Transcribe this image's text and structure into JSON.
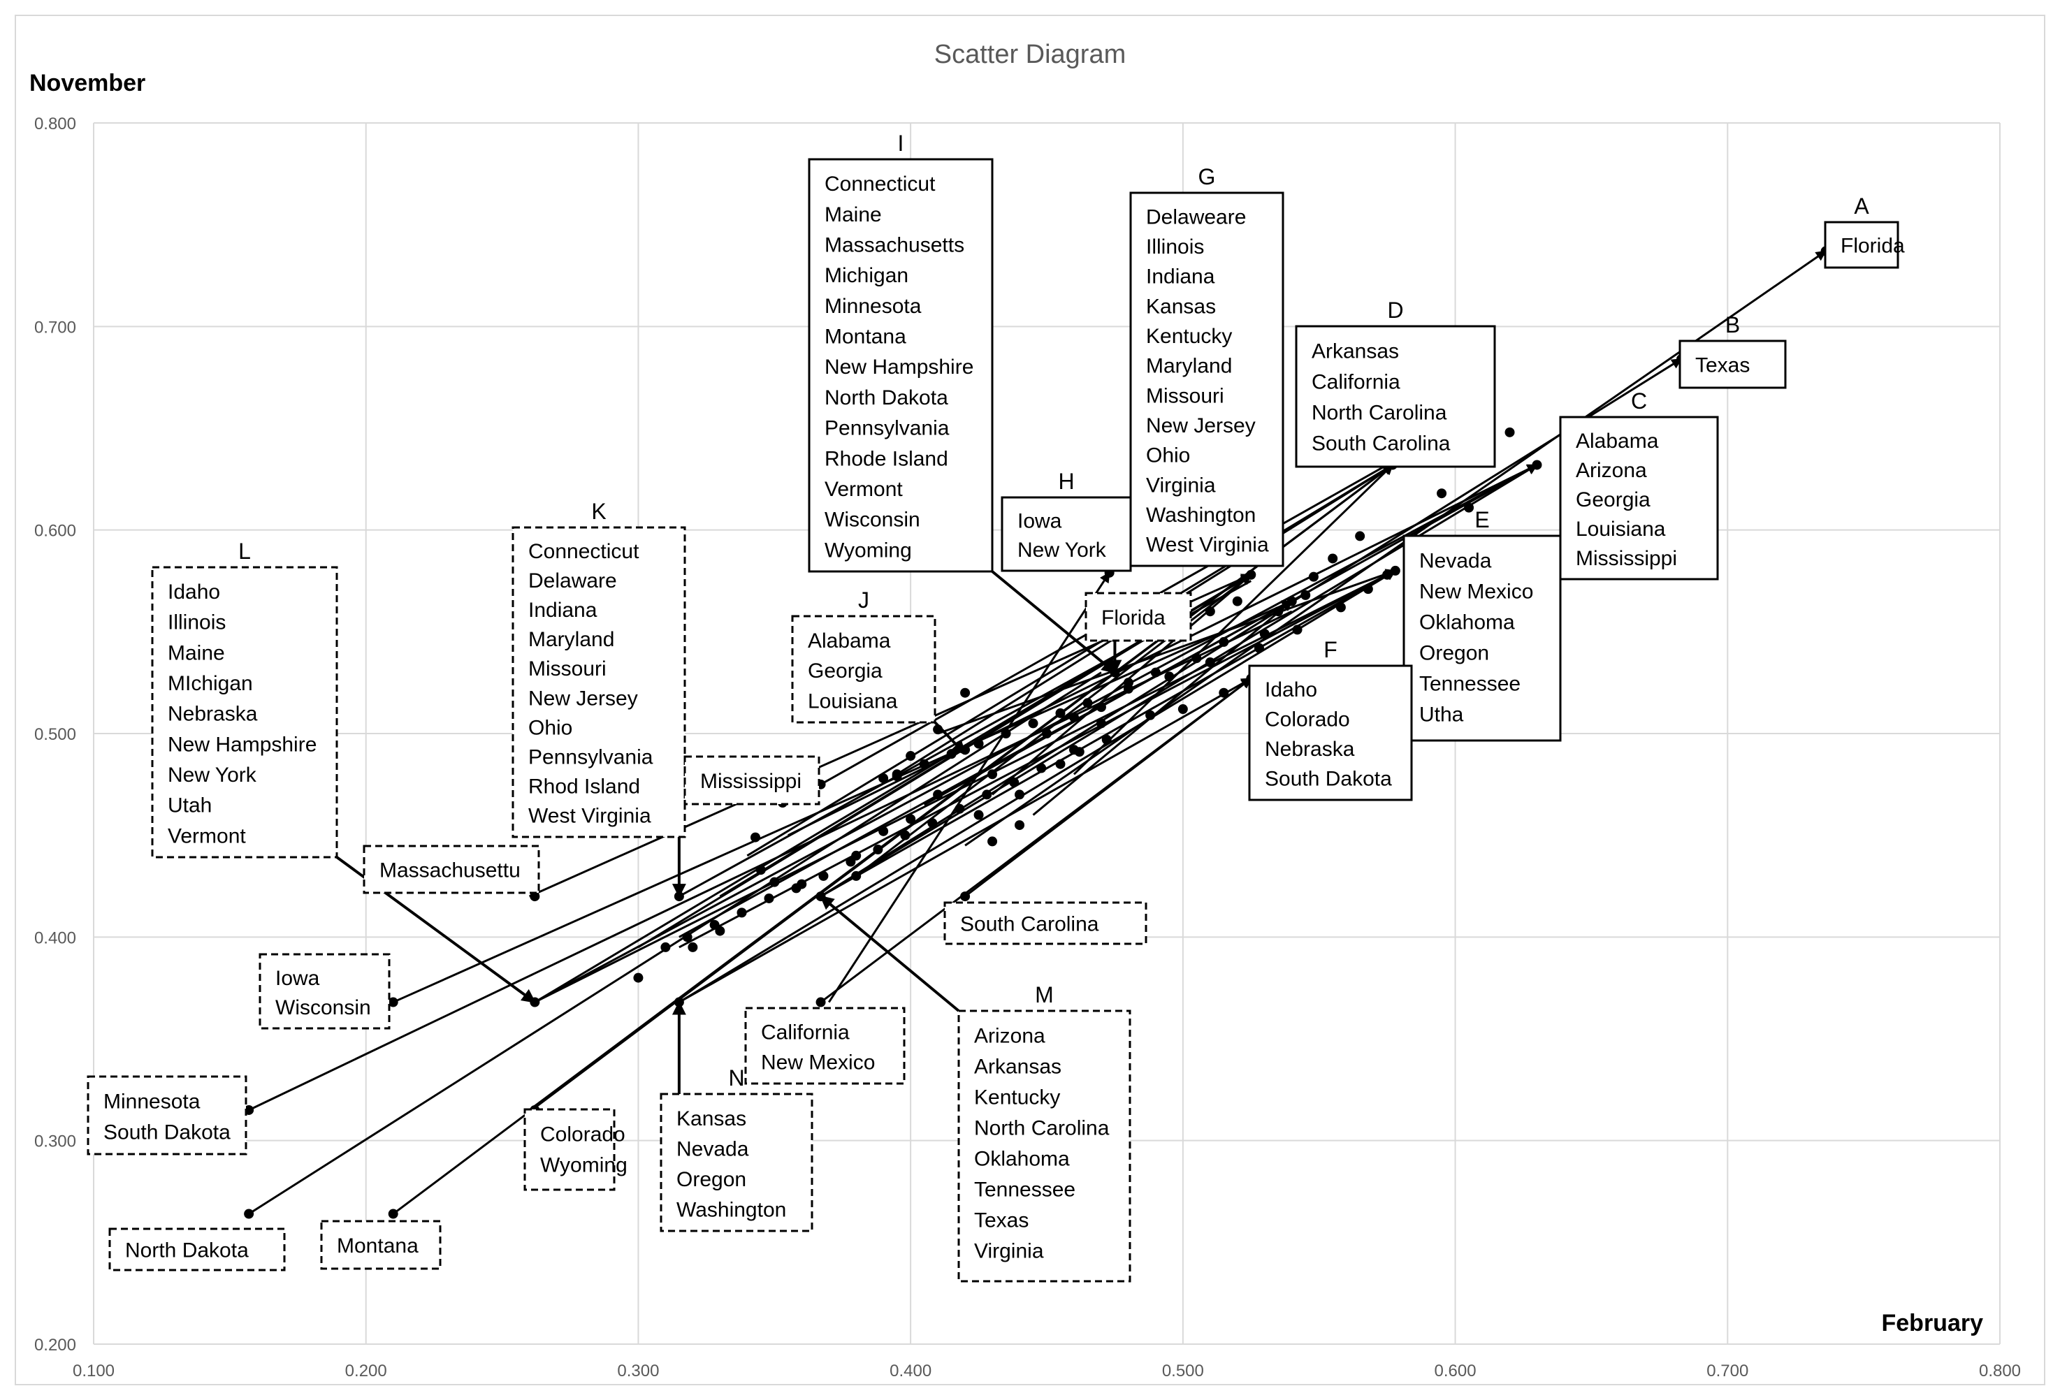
{
  "chart_data": {
    "type": "scatter",
    "title": "Scatter Diagram",
    "xlabel": "February",
    "ylabel": "November",
    "xlim": [
      0.1,
      0.8
    ],
    "ylim": [
      0.2,
      0.8
    ],
    "x_ticks": [
      "0.100",
      "0.200",
      "0.300",
      "0.400",
      "0.500",
      "0.600",
      "0.700",
      "0.800"
    ],
    "y_ticks": [
      "0.200",
      "0.300",
      "0.400",
      "0.500",
      "0.600",
      "0.700",
      "0.800"
    ],
    "grid": true,
    "colors": {
      "stroke": "#000000",
      "grid": "#d9d9d9",
      "title": "#595959",
      "axis_text": "#595959"
    },
    "segments": [
      {
        "from": [
          0.26,
          0.42
        ],
        "to": [
          0.525,
          0.578
        ]
      },
      {
        "from": [
          0.315,
          0.42
        ],
        "to": [
          0.525,
          0.575
        ]
      },
      {
        "from": [
          0.367,
          0.475
        ],
        "to": [
          0.575,
          0.632
        ]
      },
      {
        "from": [
          0.37,
          0.368
        ],
        "to": [
          0.473,
          0.579
        ]
      },
      {
        "from": [
          0.21,
          0.368
        ],
        "to": [
          0.54,
          0.565
        ]
      },
      {
        "from": [
          0.157,
          0.315
        ],
        "to": [
          0.54,
          0.56
        ]
      },
      {
        "from": [
          0.157,
          0.264
        ],
        "to": [
          0.47,
          0.53
        ]
      },
      {
        "from": [
          0.21,
          0.264
        ],
        "to": [
          0.577,
          0.632
        ]
      },
      {
        "from": [
          0.26,
          0.315
        ],
        "to": [
          0.577,
          0.632
        ]
      },
      {
        "from": [
          0.315,
          0.368
        ],
        "to": [
          0.578,
          0.58
        ]
      },
      {
        "from": [
          0.315,
          0.368
        ],
        "to": [
          0.525,
          0.527
        ]
      },
      {
        "from": [
          0.367,
          0.368
        ],
        "to": [
          0.525,
          0.527
        ]
      },
      {
        "from": [
          0.42,
          0.42
        ],
        "to": [
          0.525,
          0.527
        ]
      },
      {
        "from": [
          0.262,
          0.368
        ],
        "to": [
          0.525,
          0.578
        ]
      },
      {
        "from": [
          0.262,
          0.368
        ],
        "to": [
          0.63,
          0.632
        ]
      },
      {
        "from": [
          0.262,
          0.368
        ],
        "to": [
          0.578,
          0.58
        ]
      },
      {
        "from": [
          0.367,
          0.42
        ],
        "to": [
          0.63,
          0.632
        ]
      },
      {
        "from": [
          0.367,
          0.42
        ],
        "to": [
          0.578,
          0.58
        ]
      },
      {
        "from": [
          0.367,
          0.42
        ],
        "to": [
          0.683,
          0.684
        ]
      },
      {
        "from": [
          0.42,
          0.445
        ],
        "to": [
          0.736,
          0.737
        ]
      },
      {
        "from": [
          0.315,
          0.395
        ],
        "to": [
          0.578,
          0.58
        ]
      },
      {
        "from": [
          0.33,
          0.42
        ],
        "to": [
          0.525,
          0.578
        ]
      },
      {
        "from": [
          0.34,
          0.44
        ],
        "to": [
          0.577,
          0.632
        ]
      },
      {
        "from": [
          0.355,
          0.45
        ],
        "to": [
          0.63,
          0.632
        ]
      },
      {
        "from": [
          0.38,
          0.43
        ],
        "to": [
          0.525,
          0.578
        ]
      },
      {
        "from": [
          0.395,
          0.48
        ],
        "to": [
          0.577,
          0.632
        ]
      },
      {
        "from": [
          0.41,
          0.5
        ],
        "to": [
          0.578,
          0.58
        ]
      },
      {
        "from": [
          0.405,
          0.465
        ],
        "to": [
          0.63,
          0.632
        ]
      },
      {
        "from": [
          0.43,
          0.47
        ],
        "to": [
          0.525,
          0.578
        ]
      },
      {
        "from": [
          0.445,
          0.46
        ],
        "to": [
          0.54,
          0.565
        ]
      },
      {
        "from": [
          0.46,
          0.48
        ],
        "to": [
          0.577,
          0.632
        ]
      },
      {
        "from": [
          0.3,
          0.395
        ],
        "to": [
          0.525,
          0.578
        ]
      },
      {
        "from": [
          0.315,
          0.4
        ],
        "to": [
          0.54,
          0.565
        ]
      }
    ],
    "arrow_heads": [
      [
        0.736,
        0.737
      ],
      [
        0.683,
        0.684
      ],
      [
        0.63,
        0.632
      ],
      [
        0.577,
        0.632
      ],
      [
        0.578,
        0.58
      ],
      [
        0.525,
        0.578
      ],
      [
        0.473,
        0.579
      ],
      [
        0.525,
        0.527
      ],
      [
        0.54,
        0.565
      ]
    ],
    "points": [
      [
        0.157,
        0.315
      ],
      [
        0.157,
        0.264
      ],
      [
        0.21,
        0.368
      ],
      [
        0.21,
        0.264
      ],
      [
        0.262,
        0.42
      ],
      [
        0.262,
        0.315
      ],
      [
        0.262,
        0.368
      ],
      [
        0.315,
        0.42
      ],
      [
        0.315,
        0.368
      ],
      [
        0.367,
        0.475
      ],
      [
        0.367,
        0.42
      ],
      [
        0.367,
        0.368
      ],
      [
        0.42,
        0.42
      ],
      [
        0.475,
        0.53
      ],
      [
        0.525,
        0.527
      ],
      [
        0.525,
        0.578
      ],
      [
        0.54,
        0.565
      ],
      [
        0.577,
        0.632
      ],
      [
        0.578,
        0.58
      ],
      [
        0.63,
        0.632
      ],
      [
        0.683,
        0.684
      ],
      [
        0.736,
        0.737
      ],
      [
        0.473,
        0.579
      ],
      [
        0.595,
        0.618
      ],
      [
        0.62,
        0.648
      ],
      [
        0.565,
        0.597
      ],
      [
        0.555,
        0.586
      ],
      [
        0.548,
        0.577
      ],
      [
        0.605,
        0.611
      ],
      [
        0.455,
        0.485
      ],
      [
        0.44,
        0.47
      ],
      [
        0.425,
        0.46
      ],
      [
        0.41,
        0.502
      ],
      [
        0.395,
        0.479
      ],
      [
        0.38,
        0.44
      ],
      [
        0.35,
        0.427
      ],
      [
        0.345,
        0.433
      ],
      [
        0.33,
        0.403
      ],
      [
        0.32,
        0.395
      ],
      [
        0.3,
        0.38
      ],
      [
        0.31,
        0.395
      ],
      [
        0.44,
        0.455
      ],
      [
        0.43,
        0.447
      ],
      [
        0.4,
        0.458
      ],
      [
        0.39,
        0.452
      ],
      [
        0.36,
        0.426
      ],
      [
        0.42,
        0.492
      ],
      [
        0.45,
        0.5
      ],
      [
        0.46,
        0.508
      ],
      [
        0.47,
        0.513
      ],
      [
        0.48,
        0.525
      ],
      [
        0.49,
        0.53
      ],
      [
        0.505,
        0.537
      ],
      [
        0.515,
        0.545
      ],
      [
        0.5,
        0.553
      ],
      [
        0.51,
        0.56
      ],
      [
        0.52,
        0.565
      ],
      [
        0.535,
        0.56
      ],
      [
        0.545,
        0.568
      ],
      [
        0.488,
        0.509
      ],
      [
        0.472,
        0.497
      ],
      [
        0.462,
        0.491
      ],
      [
        0.448,
        0.483
      ],
      [
        0.438,
        0.476
      ],
      [
        0.428,
        0.47
      ],
      [
        0.418,
        0.463
      ],
      [
        0.408,
        0.456
      ],
      [
        0.398,
        0.45
      ],
      [
        0.388,
        0.443
      ],
      [
        0.378,
        0.437
      ],
      [
        0.368,
        0.43
      ],
      [
        0.358,
        0.424
      ],
      [
        0.348,
        0.419
      ],
      [
        0.338,
        0.412
      ],
      [
        0.328,
        0.406
      ],
      [
        0.318,
        0.4
      ],
      [
        0.38,
        0.43
      ],
      [
        0.395,
        0.48
      ],
      [
        0.405,
        0.485
      ],
      [
        0.415,
        0.49
      ],
      [
        0.425,
        0.495
      ],
      [
        0.435,
        0.5
      ],
      [
        0.445,
        0.505
      ],
      [
        0.455,
        0.51
      ],
      [
        0.465,
        0.515
      ],
      [
        0.48,
        0.522
      ],
      [
        0.495,
        0.528
      ],
      [
        0.51,
        0.535
      ],
      [
        0.528,
        0.542
      ],
      [
        0.542,
        0.551
      ],
      [
        0.558,
        0.562
      ],
      [
        0.568,
        0.571
      ],
      [
        0.575,
        0.578
      ],
      [
        0.353,
        0.466
      ],
      [
        0.343,
        0.449
      ],
      [
        0.42,
        0.52
      ],
      [
        0.4,
        0.489
      ],
      [
        0.39,
        0.478
      ],
      [
        0.41,
        0.47
      ],
      [
        0.43,
        0.48
      ],
      [
        0.46,
        0.492
      ],
      [
        0.47,
        0.505
      ],
      [
        0.5,
        0.512
      ],
      [
        0.515,
        0.52
      ],
      [
        0.53,
        0.549
      ]
    ],
    "boxes": [
      {
        "id": "A",
        "letter": "A",
        "style": "solid",
        "lines": [
          "Florida"
        ]
      },
      {
        "id": "B",
        "letter": "B",
        "style": "solid",
        "lines": [
          "Texas"
        ]
      },
      {
        "id": "C",
        "letter": "C",
        "style": "solid",
        "lines": [
          "Alabama",
          "Arizona",
          "Georgia",
          "Louisiana",
          "Mississippi"
        ]
      },
      {
        "id": "D",
        "letter": "D",
        "style": "solid",
        "lines": [
          "Arkansas",
          "California",
          "North Carolina",
          "South Carolina"
        ]
      },
      {
        "id": "E",
        "letter": "E",
        "style": "solid",
        "lines": [
          "Nevada",
          "New Mexico",
          "Oklahoma",
          "Oregon",
          "Tennessee",
          "Utha"
        ]
      },
      {
        "id": "F",
        "letter": "F",
        "style": "solid",
        "lines": [
          "Idaho",
          "Colorado",
          "Nebraska",
          "South Dakota"
        ]
      },
      {
        "id": "G",
        "letter": "G",
        "style": "solid",
        "lines": [
          "Delaweare",
          "Illinois",
          "Indiana",
          "Kansas",
          "Kentucky",
          "Maryland",
          "Missouri",
          "New Jersey",
          "Ohio",
          "Virginia",
          "Washington",
          "West Virginia"
        ]
      },
      {
        "id": "H",
        "letter": "H",
        "style": "solid",
        "lines": [
          "Iowa",
          "New York"
        ]
      },
      {
        "id": "I",
        "letter": "I",
        "style": "solid",
        "lines": [
          "Connecticut",
          "Maine",
          "Massachusetts",
          "Michigan",
          "Minnesota",
          "Montana",
          "New Hampshire",
          "North Dakota",
          "Pennsylvania",
          "Rhode Island",
          "Vermont",
          "Wisconsin",
          "Wyoming"
        ]
      },
      {
        "id": "J",
        "letter": "J",
        "style": "dashed",
        "lines": [
          "Alabama",
          "Georgia",
          "Louisiana"
        ]
      },
      {
        "id": "K",
        "letter": "K",
        "style": "dashed",
        "lines": [
          "Connecticut",
          "Delaware",
          "Indiana",
          "Maryland",
          "Missouri",
          "New Jersey",
          "Ohio",
          "Pennsylvania",
          "Rhod Island",
          "West Virginia"
        ]
      },
      {
        "id": "L",
        "letter": "L",
        "style": "dashed",
        "lines": [
          "Idaho",
          "Illinois",
          "Maine",
          "MIchigan",
          "Nebraska",
          "New Hampshire",
          "New York",
          "Utah",
          "Vermont"
        ]
      },
      {
        "id": "M",
        "letter": "M",
        "style": "dashed",
        "lines": [
          "Arizona",
          "Arkansas",
          "Kentucky",
          "North Carolina",
          "Oklahoma",
          "Tennessee",
          "Texas",
          "Virginia"
        ]
      },
      {
        "id": "N",
        "letter": "N",
        "style": "dashed",
        "lines": [
          "Kansas",
          "Nevada",
          "Oregon",
          "Washington"
        ]
      },
      {
        "id": "florida-start",
        "letter": "",
        "style": "dashed",
        "lines": [
          "Florida"
        ]
      },
      {
        "id": "mississippi",
        "letter": "",
        "style": "dashed",
        "lines": [
          "Mississippi"
        ]
      },
      {
        "id": "massachusetts",
        "letter": "",
        "style": "dashed",
        "lines": [
          "Massachusettu"
        ]
      },
      {
        "id": "south-carolina",
        "letter": "",
        "style": "dashed",
        "lines": [
          "South Carolina"
        ]
      },
      {
        "id": "iowa-wisconsin",
        "letter": "",
        "style": "dashed",
        "lines": [
          "Iowa",
          "Wisconsin"
        ]
      },
      {
        "id": "minnesota-south-dakota",
        "letter": "",
        "style": "dashed",
        "lines": [
          "Minnesota",
          "South Dakota"
        ]
      },
      {
        "id": "california-new-mexico",
        "letter": "",
        "style": "dashed",
        "lines": [
          "California",
          "New Mexico"
        ]
      },
      {
        "id": "colorado-wyoming",
        "letter": "",
        "style": "dashed",
        "lines": [
          "Colorado",
          "Wyoming"
        ]
      },
      {
        "id": "north-dakota",
        "letter": "",
        "style": "dashed",
        "lines": [
          "North Dakota"
        ]
      },
      {
        "id": "montana",
        "letter": "",
        "style": "dashed",
        "lines": [
          "Montana"
        ]
      }
    ],
    "callouts": [
      {
        "from_box": "I",
        "to": [
          0.475,
          0.53
        ]
      },
      {
        "from_box": "L",
        "to": [
          0.262,
          0.368
        ]
      },
      {
        "from_box": "K",
        "to": [
          0.315,
          0.42
        ]
      },
      {
        "from_box": "J",
        "to": [
          0.42,
          0.49
        ]
      },
      {
        "from_box": "M",
        "to": [
          0.367,
          0.42
        ]
      },
      {
        "from_box": "N",
        "to": [
          0.315,
          0.368
        ]
      },
      {
        "from_box": "florida-start",
        "to": [
          0.475,
          0.53
        ]
      }
    ]
  }
}
